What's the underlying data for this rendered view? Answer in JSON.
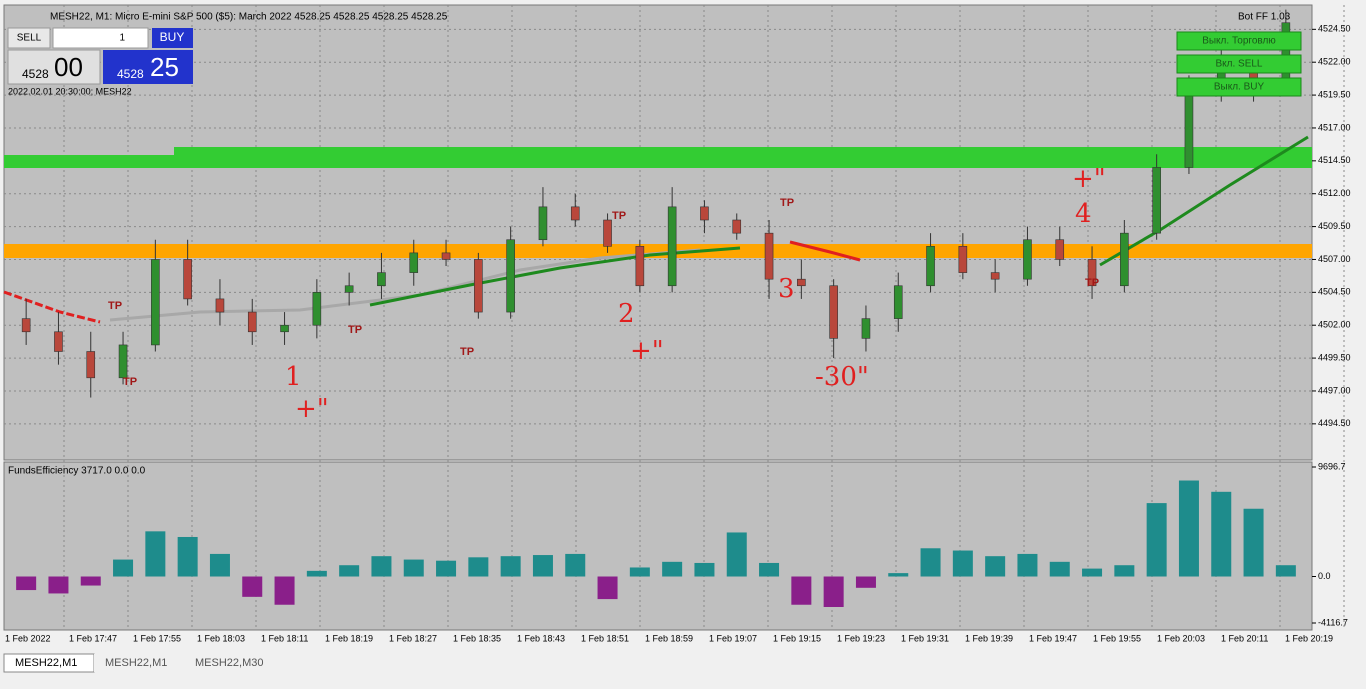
{
  "header": {
    "symbol_line": "MESH22, M1:  Micro E-mini S&P 500 ($5): March 2022  4528.25 4528.25 4528.25 4528.25",
    "bot": "Bot FF 1.03"
  },
  "trade_panel": {
    "sell": "SELL",
    "volume": "1",
    "buy": "BUY",
    "bid_big": "4528",
    "bid_small": "00",
    "ask_big": "4528",
    "ask_small": "25",
    "timestamp": "2022.02.01 20:30:00; MESH22"
  },
  "bot_buttons": [
    "Выкл. Торговлю",
    "Вкл. SELL",
    "Выкл. BUY"
  ],
  "chart": {
    "ylim": [
      4491.75,
      4526.35
    ],
    "yticks": [
      {
        "value": 4524.5,
        "label": "4524.50"
      },
      {
        "value": 4522,
        "label": "4522.00"
      },
      {
        "value": 4519.5,
        "label": "4519.50"
      },
      {
        "value": 4517,
        "label": "4517.00"
      },
      {
        "value": 4514.5,
        "label": "4514.50"
      },
      {
        "value": 4512,
        "label": "4512.00"
      },
      {
        "value": 4509.5,
        "label": "4509.50"
      },
      {
        "value": 4507,
        "label": "4507.00"
      },
      {
        "value": 4504.5,
        "label": "4504.50"
      },
      {
        "value": 4502,
        "label": "4502.00"
      },
      {
        "value": 4499.5,
        "label": "4499.50"
      },
      {
        "value": 4497,
        "label": "4497.00"
      },
      {
        "value": 4494.5,
        "label": "4494.50"
      }
    ],
    "time_labels": [
      "1 Feb 2022",
      "1 Feb 17:47",
      "1 Feb 17:55",
      "1 Feb 18:03",
      "1 Feb 18:11",
      "1 Feb 18:19",
      "1 Feb 18:27",
      "1 Feb 18:35",
      "1 Feb 18:43",
      "1 Feb 18:51",
      "1 Feb 18:59",
      "1 Feb 19:07",
      "1 Feb 19:15",
      "1 Feb 19:23",
      "1 Feb 19:31",
      "1 Feb 19:39",
      "1 Feb 19:47",
      "1 Feb 19:55",
      "1 Feb 20:03",
      "1 Feb 20:11",
      "1 Feb 20:19"
    ],
    "up_color": "#2f8f2f",
    "down_color": "#b9473b",
    "open": [
      4502.5,
      4501.5,
      4500.0,
      4498.0,
      4500.5,
      4507.0,
      4504.0,
      4503.0,
      4501.5,
      4502.0,
      4504.5,
      4505.0,
      4506.0,
      4507.5,
      4507.0,
      4503.0,
      4508.5,
      4511.0,
      4510.0,
      4508.0,
      4505.0,
      4511.0,
      4510.0,
      4509.0,
      4505.5,
      4505.0,
      4501.0,
      4502.5,
      4505.0,
      4508.0,
      4506.0,
      4505.5,
      4508.5,
      4507.0,
      4505.0,
      4509.0,
      4514.0,
      4520.0,
      4522.0,
      4520.0
    ],
    "high": [
      4504.0,
      4503.0,
      4501.5,
      4501.5,
      4508.5,
      4508.5,
      4505.5,
      4504.0,
      4503.0,
      4505.5,
      4506.0,
      4507.5,
      4508.5,
      4508.5,
      4507.5,
      4509.5,
      4512.5,
      4512.0,
      4510.5,
      4508.5,
      4512.5,
      4511.5,
      4510.5,
      4510.0,
      4507.0,
      4505.5,
      4503.5,
      4506.0,
      4509.0,
      4509.0,
      4507.0,
      4509.5,
      4509.5,
      4508.0,
      4510.0,
      4515.0,
      4521.0,
      4523.5,
      4522.5,
      4526.0
    ],
    "low": [
      4500.5,
      4499.0,
      4496.5,
      4497.5,
      4500.0,
      4503.5,
      4502.0,
      4500.5,
      4500.5,
      4501.0,
      4503.5,
      4504.0,
      4505.0,
      4506.5,
      4502.5,
      4502.5,
      4508.0,
      4509.5,
      4507.5,
      4504.5,
      4504.5,
      4509.0,
      4508.5,
      4504.0,
      4504.0,
      4499.5,
      4500.0,
      4501.5,
      4504.5,
      4505.5,
      4504.5,
      4505.0,
      4506.5,
      4504.0,
      4504.5,
      4508.5,
      4513.5,
      4519.0,
      4519.0,
      4519.5
    ],
    "close": [
      4501.5,
      4500.0,
      4498.0,
      4500.5,
      4507.0,
      4504.0,
      4503.0,
      4501.5,
      4502.0,
      4504.5,
      4505.0,
      4506.0,
      4507.5,
      4507.0,
      4503.0,
      4508.5,
      4511.0,
      4510.0,
      4508.0,
      4505.0,
      4511.0,
      4510.0,
      4509.0,
      4505.5,
      4505.0,
      4501.0,
      4502.5,
      4505.0,
      4508.0,
      4506.0,
      4505.5,
      4508.5,
      4507.0,
      4505.0,
      4509.0,
      4514.0,
      4520.0,
      4522.0,
      4520.0,
      4525.0
    ],
    "annotations": [
      "1",
      "+\"",
      "2",
      "+\"",
      "3",
      "-30\"",
      "4",
      "+\""
    ],
    "tp_labels": [
      "TP",
      "TP",
      "TP",
      "TP",
      "TP",
      "TP",
      "TP"
    ]
  },
  "indicator": {
    "label": "FundsEfficiency 3717.0 0.0 0.0",
    "ylim": [
      -4116.7,
      9696.7
    ],
    "yticks": [
      9696.7,
      {
        "value": 0,
        "label": "0.0"
      },
      -4116.7
    ],
    "pos_color": "#1e8c8c",
    "neg_color": "#8a1f8a",
    "values": [
      -1200,
      -1500,
      -800,
      1500,
      4000,
      3500,
      2000,
      -1800,
      -2500,
      500,
      1000,
      1800,
      1500,
      1400,
      1700,
      1800,
      1900,
      2000,
      -2000,
      800,
      1300,
      1200,
      3900,
      1200,
      -2500,
      -2700,
      -1000,
      300,
      2500,
      2300,
      1800,
      2000,
      1300,
      700,
      1000,
      6500,
      8500,
      7500,
      6000,
      1000
    ]
  },
  "tabs": [
    "MESH22,M1",
    "MESH22,M1",
    "MESH22,M30"
  ]
}
